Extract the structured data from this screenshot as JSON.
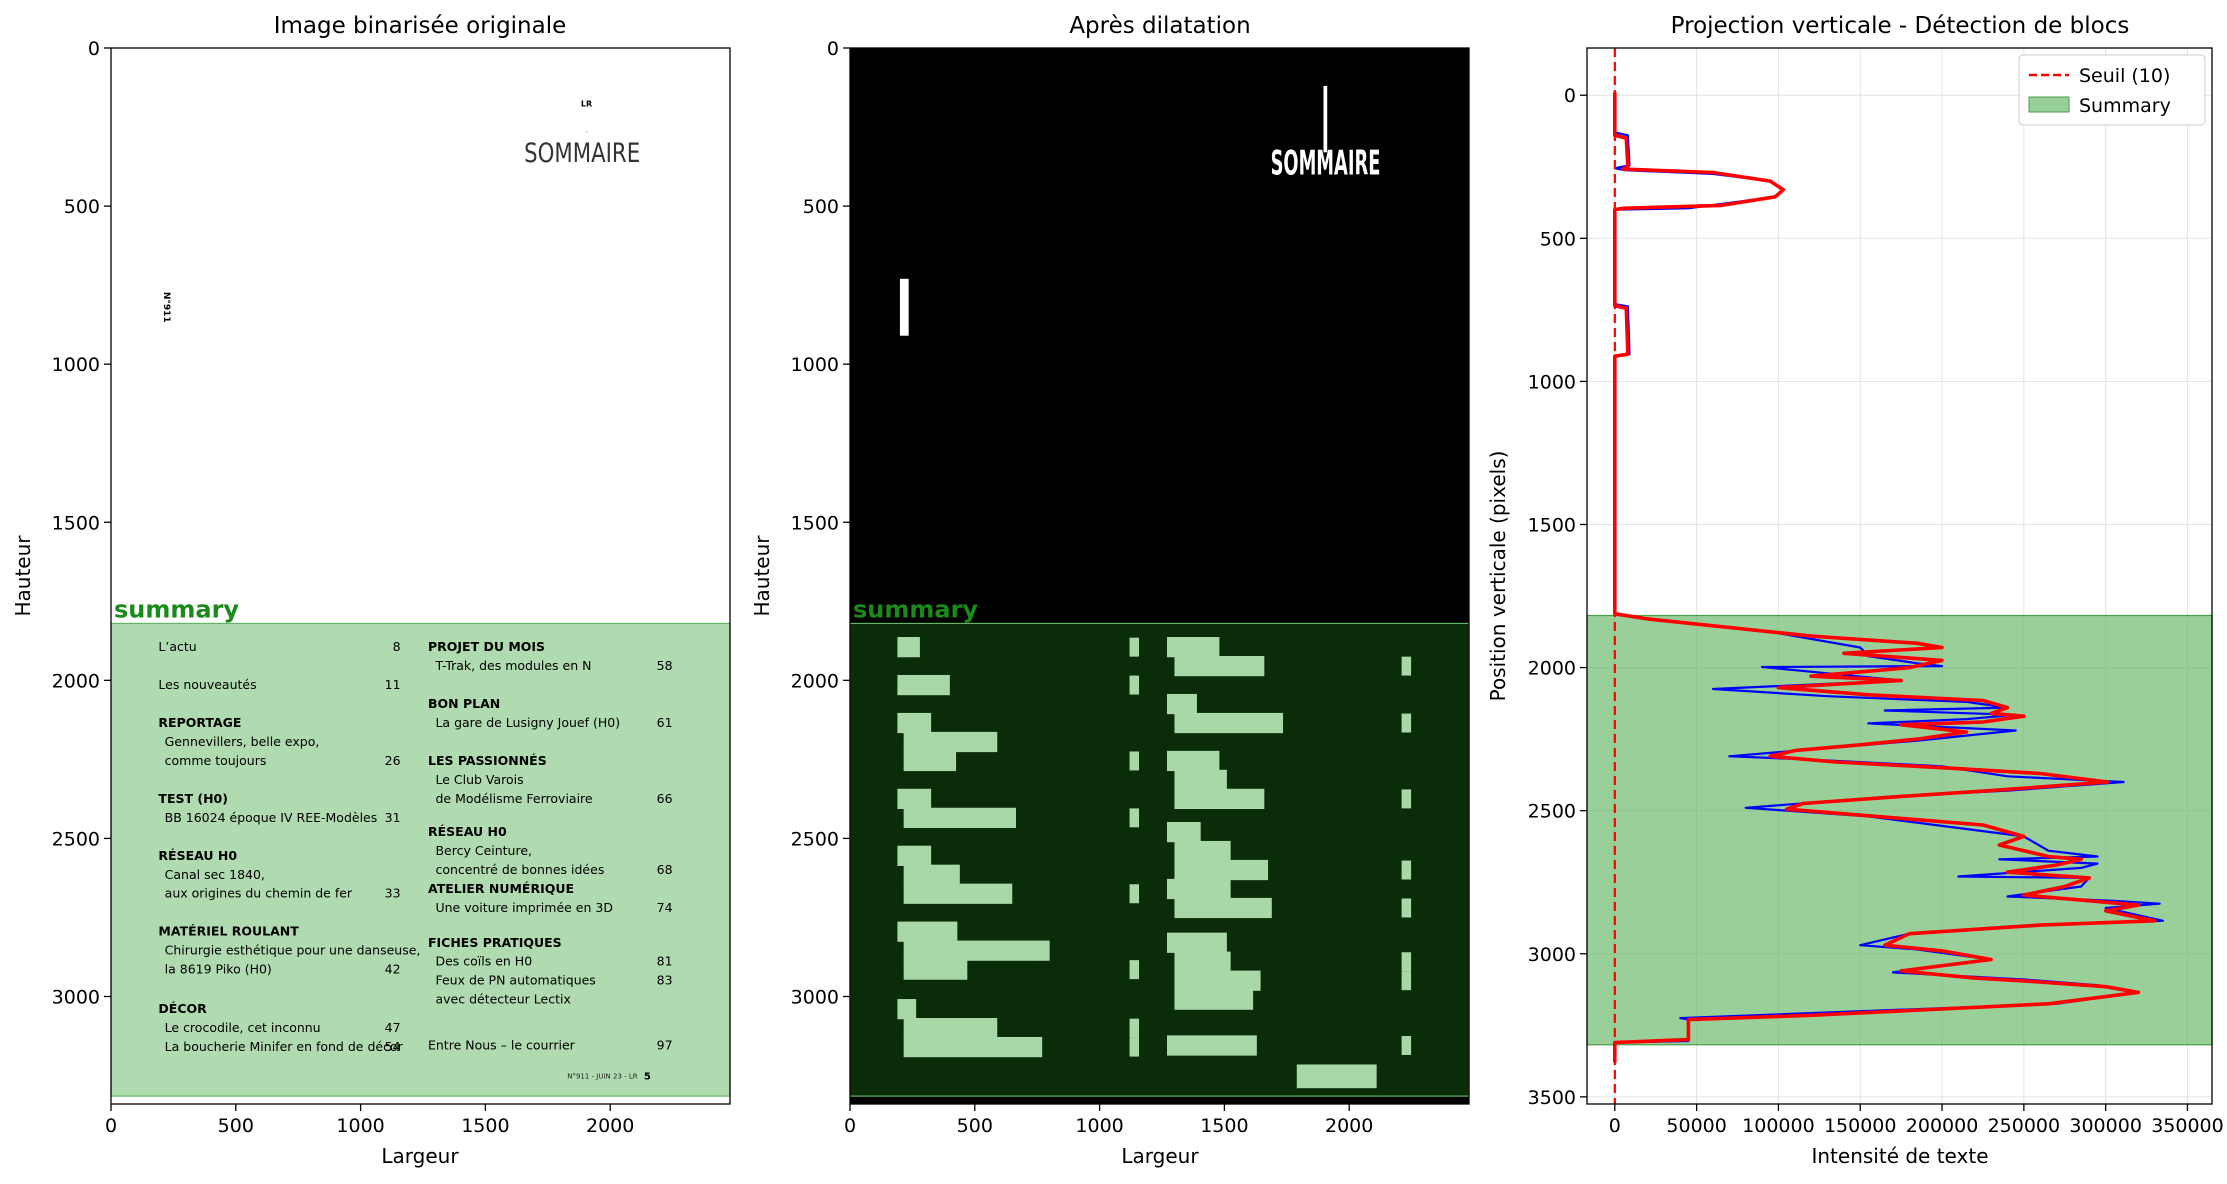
{
  "chart_data": [
    {
      "type": "image",
      "title": "Image binarisée originale",
      "xlabel": "Largeur",
      "ylabel": "Hauteur",
      "xlim": [
        0,
        2480
      ],
      "ylim": [
        3340,
        0
      ],
      "xticks": [
        0,
        500,
        1000,
        1500,
        2000
      ],
      "yticks": [
        0,
        500,
        1000,
        1500,
        2000,
        2500,
        3000
      ],
      "region": {
        "label": "summary",
        "y_start": 1820,
        "y_end": 3315,
        "color": "#62b562"
      },
      "page": {
        "header_small": "LR",
        "header_tiny": "···",
        "heading": "SOMMAIRE",
        "side_label": "N°911",
        "footer": "N°911 - JUIN 23 - LR",
        "footer_page": "5"
      },
      "toc_left": [
        {
          "head": "L’actu",
          "bold": false,
          "lines": [],
          "page": "8",
          "y": 1895
        },
        {
          "head": "Les nouveautés",
          "bold": false,
          "lines": [],
          "page": "11",
          "y": 2015
        },
        {
          "head": "REPORTAGE",
          "bold": true,
          "lines": [
            "Gennevillers, belle expo,",
            "comme toujours"
          ],
          "page": "26",
          "y": 2135
        },
        {
          "head": "TEST (H0)",
          "bold": true,
          "lines": [
            "BB 16024 époque IV REE-Modèles"
          ],
          "page": "31",
          "y": 2375
        },
        {
          "head": "RÉSEAU H0",
          "bold": true,
          "lines": [
            "Canal sec 1840,",
            "aux origines du chemin de fer"
          ],
          "page": "33",
          "y": 2555
        },
        {
          "head": "MATÉRIEL ROULANT",
          "bold": true,
          "lines": [
            "Chirurgie esthétique pour une danseuse,",
            "la 8619 Piko (H0)"
          ],
          "page": "42",
          "y": 2795
        },
        {
          "head": "DÉCOR",
          "bold": true,
          "lines": [
            "Le crocodile, cet inconnu",
            "La boucherie Minifer en fond de décor"
          ],
          "page": "47|54",
          "y": 3040
        }
      ],
      "toc_right": [
        {
          "head": "PROJET DU MOIS",
          "bold": true,
          "lines": [
            "T-Trak, des modules en N"
          ],
          "page": "58",
          "y": 1895
        },
        {
          "head": "BON PLAN",
          "bold": true,
          "lines": [
            "La gare de Lusigny Jouef (H0)"
          ],
          "page": "61",
          "y": 2075
        },
        {
          "head": "LES PASSIONNÉS",
          "bold": true,
          "lines": [
            "Le Club Varois",
            "de Modélisme Ferroviaire"
          ],
          "page": "66",
          "y": 2255
        },
        {
          "head": "RÉSEAU H0",
          "bold": true,
          "lines": [
            "Bercy Ceinture,",
            "concentré de bonnes idées"
          ],
          "page": "68",
          "y": 2480
        },
        {
          "head": "ATELIER NUMÉRIQUE",
          "bold": true,
          "lines": [
            "Une voiture imprimée en 3D"
          ],
          "page": "74",
          "y": 2660
        },
        {
          "head": "FICHES PRATIQUES",
          "bold": true,
          "lines": [
            "Des coïls en H0",
            "Feux de PN automatiques",
            "avec détecteur Lectix"
          ],
          "page": "81|83",
          "y": 2830
        },
        {
          "head": "Entre Nous – le courrier",
          "bold": false,
          "lines": [],
          "page": "97",
          "y": 3155
        }
      ]
    },
    {
      "type": "image",
      "title": "Après dilatation",
      "xlabel": "Largeur",
      "ylabel": "Hauteur",
      "xlim": [
        0,
        2480
      ],
      "ylim": [
        3340,
        0
      ],
      "xticks": [
        0,
        500,
        1000,
        1500,
        2000
      ],
      "yticks": [
        0,
        500,
        1000,
        1500,
        2000,
        2500,
        3000
      ],
      "region": {
        "label": "summary",
        "y_start": 1820,
        "y_end": 3315,
        "color": "#62b562"
      },
      "dilated_heading": "SOMMAIRE"
    },
    {
      "type": "line",
      "title": "Projection verticale - Détection de blocs",
      "xlabel": "Intensité de texte",
      "ylabel": "Position verticale (pixels)",
      "xlim": [
        -17000,
        365000
      ],
      "ylim": [
        3525,
        -165
      ],
      "xticks": [
        0,
        50000,
        100000,
        150000,
        200000,
        250000,
        300000,
        350000
      ],
      "yticks": [
        0,
        500,
        1000,
        1500,
        2000,
        2500,
        3000,
        3500
      ],
      "grid": true,
      "legend": {
        "position": "top-right",
        "entries": [
          {
            "label": "Seuil (10)",
            "style": "dashed",
            "color": "#ff0000"
          },
          {
            "label": "Summary",
            "style": "patch",
            "color": "#62b562"
          }
        ]
      },
      "threshold": 10,
      "region": {
        "label": "Summary",
        "y_start": 1818,
        "y_end": 3318,
        "color": "#62b562"
      },
      "series": [
        {
          "style": "raw",
          "color": "#0000ff",
          "points": [
            [
              0,
              -10
            ],
            [
              0,
              130
            ],
            [
              8000,
              140
            ],
            [
              9000,
              245
            ],
            [
              0,
              255
            ],
            [
              6000,
              262
            ],
            [
              60000,
              275
            ],
            [
              95000,
              300
            ],
            [
              103000,
              330
            ],
            [
              98000,
              355
            ],
            [
              45000,
              395
            ],
            [
              0,
              400
            ],
            [
              0,
              730
            ],
            [
              8000,
              738
            ],
            [
              9000,
              905
            ],
            [
              0,
              912
            ],
            [
              0,
              1812
            ],
            [
              20000,
              1830
            ],
            [
              100000,
              1880
            ],
            [
              150000,
              1930
            ],
            [
              155000,
              1960
            ],
            [
              185000,
              1985
            ],
            [
              200000,
              1995
            ],
            [
              90000,
              1998
            ],
            [
              130000,
              2020
            ],
            [
              175000,
              2045
            ],
            [
              60000,
              2075
            ],
            [
              130000,
              2100
            ],
            [
              215000,
              2120
            ],
            [
              240000,
              2140
            ],
            [
              165000,
              2150
            ],
            [
              245000,
              2165
            ],
            [
              215000,
              2180
            ],
            [
              155000,
              2195
            ],
            [
              245000,
              2220
            ],
            [
              185000,
              2255
            ],
            [
              70000,
              2310
            ],
            [
              115000,
              2320
            ],
            [
              200000,
              2345
            ],
            [
              240000,
              2380
            ],
            [
              311000,
              2400
            ],
            [
              240000,
              2430
            ],
            [
              170000,
              2450
            ],
            [
              80000,
              2490
            ],
            [
              155000,
              2520
            ],
            [
              250000,
              2590
            ],
            [
              265000,
              2640
            ],
            [
              295000,
              2660
            ],
            [
              235000,
              2670
            ],
            [
              295000,
              2685
            ],
            [
              285000,
              2700
            ],
            [
              210000,
              2730
            ],
            [
              290000,
              2735
            ],
            [
              285000,
              2765
            ],
            [
              240000,
              2800
            ],
            [
              305000,
              2815
            ],
            [
              333000,
              2825
            ],
            [
              300000,
              2840
            ],
            [
              335000,
              2885
            ],
            [
              240000,
              2905
            ],
            [
              180000,
              2930
            ],
            [
              150000,
              2970
            ],
            [
              185000,
              2985
            ],
            [
              230000,
              3020
            ],
            [
              170000,
              3065
            ],
            [
              250000,
              3090
            ],
            [
              295000,
              3110
            ],
            [
              320000,
              3135
            ],
            [
              270000,
              3175
            ],
            [
              40000,
              3225
            ],
            [
              45000,
              3230
            ],
            [
              45000,
              3305
            ],
            [
              0,
              3310
            ],
            [
              0,
              3380
            ]
          ]
        },
        {
          "style": "smoothed",
          "color": "#ff0000",
          "points": [
            [
              0,
              -10
            ],
            [
              0,
              140
            ],
            [
              7000,
              150
            ],
            [
              8000,
              250
            ],
            [
              5000,
              258
            ],
            [
              60000,
              270
            ],
            [
              95000,
              300
            ],
            [
              103000,
              330
            ],
            [
              98000,
              355
            ],
            [
              65000,
              385
            ],
            [
              5000,
              395
            ],
            [
              0,
              400
            ],
            [
              0,
              735
            ],
            [
              7000,
              745
            ],
            [
              8000,
              905
            ],
            [
              0,
              912
            ],
            [
              0,
              1812
            ],
            [
              20000,
              1830
            ],
            [
              120000,
              1890
            ],
            [
              185000,
              1915
            ],
            [
              200000,
              1930
            ],
            [
              140000,
              1950
            ],
            [
              200000,
              1975
            ],
            [
              180000,
              2000
            ],
            [
              120000,
              2030
            ],
            [
              175000,
              2045
            ],
            [
              100000,
              2070
            ],
            [
              155000,
              2095
            ],
            [
              225000,
              2115
            ],
            [
              240000,
              2140
            ],
            [
              230000,
              2160
            ],
            [
              250000,
              2170
            ],
            [
              225000,
              2190
            ],
            [
              175000,
              2200
            ],
            [
              215000,
              2225
            ],
            [
              185000,
              2250
            ],
            [
              150000,
              2270
            ],
            [
              110000,
              2290
            ],
            [
              95000,
              2310
            ],
            [
              135000,
              2330
            ],
            [
              200000,
              2350
            ],
            [
              260000,
              2370
            ],
            [
              301000,
              2400
            ],
            [
              230000,
              2430
            ],
            [
              175000,
              2450
            ],
            [
              115000,
              2475
            ],
            [
              105000,
              2495
            ],
            [
              160000,
              2520
            ],
            [
              225000,
              2550
            ],
            [
              250000,
              2590
            ],
            [
              235000,
              2620
            ],
            [
              265000,
              2660
            ],
            [
              285000,
              2670
            ],
            [
              270000,
              2690
            ],
            [
              240000,
              2715
            ],
            [
              290000,
              2735
            ],
            [
              275000,
              2765
            ],
            [
              250000,
              2795
            ],
            [
              320000,
              2830
            ],
            [
              300000,
              2850
            ],
            [
              330000,
              2885
            ],
            [
              260000,
              2900
            ],
            [
              180000,
              2930
            ],
            [
              165000,
              2970
            ],
            [
              200000,
              2990
            ],
            [
              230000,
              3020
            ],
            [
              175000,
              3060
            ],
            [
              220000,
              3085
            ],
            [
              250000,
              3095
            ],
            [
              300000,
              3115
            ],
            [
              320000,
              3135
            ],
            [
              265000,
              3175
            ],
            [
              120000,
              3215
            ],
            [
              45000,
              3230
            ],
            [
              45000,
              3300
            ],
            [
              0,
              3310
            ],
            [
              0,
              3380
            ]
          ]
        }
      ]
    }
  ]
}
